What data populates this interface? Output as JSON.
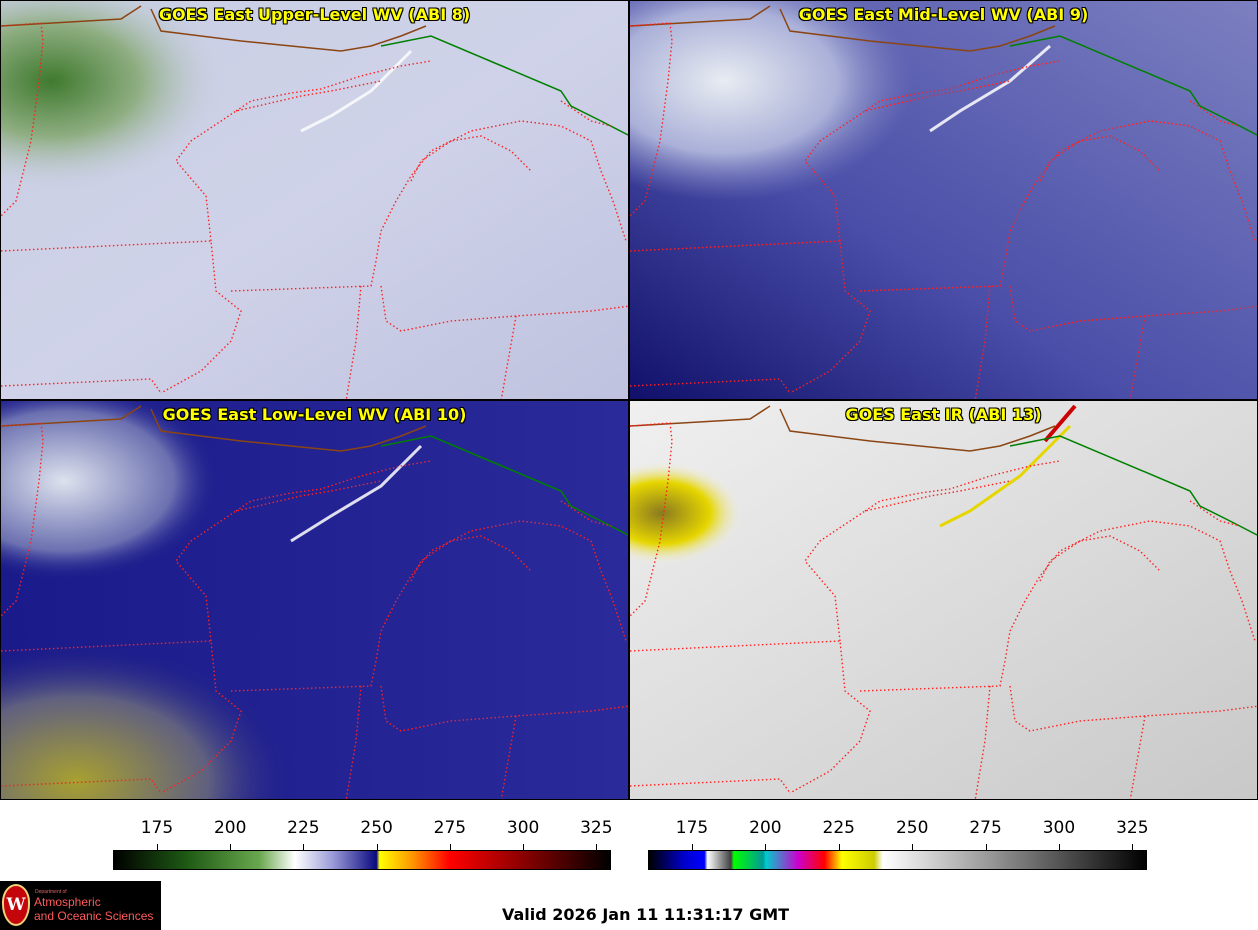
{
  "panels": [
    {
      "title": "GOES East Upper-Level WV (ABI 8)",
      "product": "upper-wv"
    },
    {
      "title": "GOES East Mid-Level WV (ABI 9)",
      "product": "mid-wv"
    },
    {
      "title": "GOES East Low-Level WV (ABI 10)",
      "product": "low-wv"
    },
    {
      "title": "GOES East IR (ABI 13)",
      "product": "ir"
    }
  ],
  "colorbars": {
    "wv": {
      "ticks": [
        "175",
        "200",
        "225",
        "250",
        "275",
        "300",
        "325"
      ],
      "tick_values": [
        175,
        200,
        225,
        250,
        275,
        300,
        325
      ],
      "range": [
        160,
        330
      ],
      "stops": [
        {
          "v": 160,
          "c": "#000000"
        },
        {
          "v": 185,
          "c": "#1e5a14"
        },
        {
          "v": 210,
          "c": "#6aa84f"
        },
        {
          "v": 222,
          "c": "#ffffff"
        },
        {
          "v": 235,
          "c": "#9a9ad8"
        },
        {
          "v": 250,
          "c": "#0a0a80"
        },
        {
          "v": 251,
          "c": "#ffff00"
        },
        {
          "v": 262,
          "c": "#ff9900"
        },
        {
          "v": 275,
          "c": "#ff0000"
        },
        {
          "v": 300,
          "c": "#8b0000"
        },
        {
          "v": 330,
          "c": "#000000"
        }
      ]
    },
    "ir": {
      "ticks": [
        "175",
        "200",
        "225",
        "250",
        "275",
        "300",
        "325"
      ],
      "tick_values": [
        175,
        200,
        225,
        250,
        275,
        300,
        325
      ],
      "range": [
        160,
        330
      ],
      "stops": [
        {
          "v": 160,
          "c": "#000000"
        },
        {
          "v": 172,
          "c": "#0000cc"
        },
        {
          "v": 179,
          "c": "#0000ff"
        },
        {
          "v": 180,
          "c": "#ffffff"
        },
        {
          "v": 188,
          "c": "#404040"
        },
        {
          "v": 189,
          "c": "#00ff00"
        },
        {
          "v": 199,
          "c": "#009999"
        },
        {
          "v": 200,
          "c": "#00cccc"
        },
        {
          "v": 211,
          "c": "#cc00cc"
        },
        {
          "v": 220,
          "c": "#ff0000"
        },
        {
          "v": 226,
          "c": "#ffff00"
        },
        {
          "v": 237,
          "c": "#cccc00"
        },
        {
          "v": 240,
          "c": "#ffffff"
        },
        {
          "v": 330,
          "c": "#000000"
        }
      ]
    }
  },
  "logo": {
    "department_of": "Department of",
    "line1": "Atmospheric",
    "line2": "and Oceanic Sciences",
    "seal_letter": "W"
  },
  "valid_time": "Valid 2026 Jan 11 11:31:17 GMT"
}
